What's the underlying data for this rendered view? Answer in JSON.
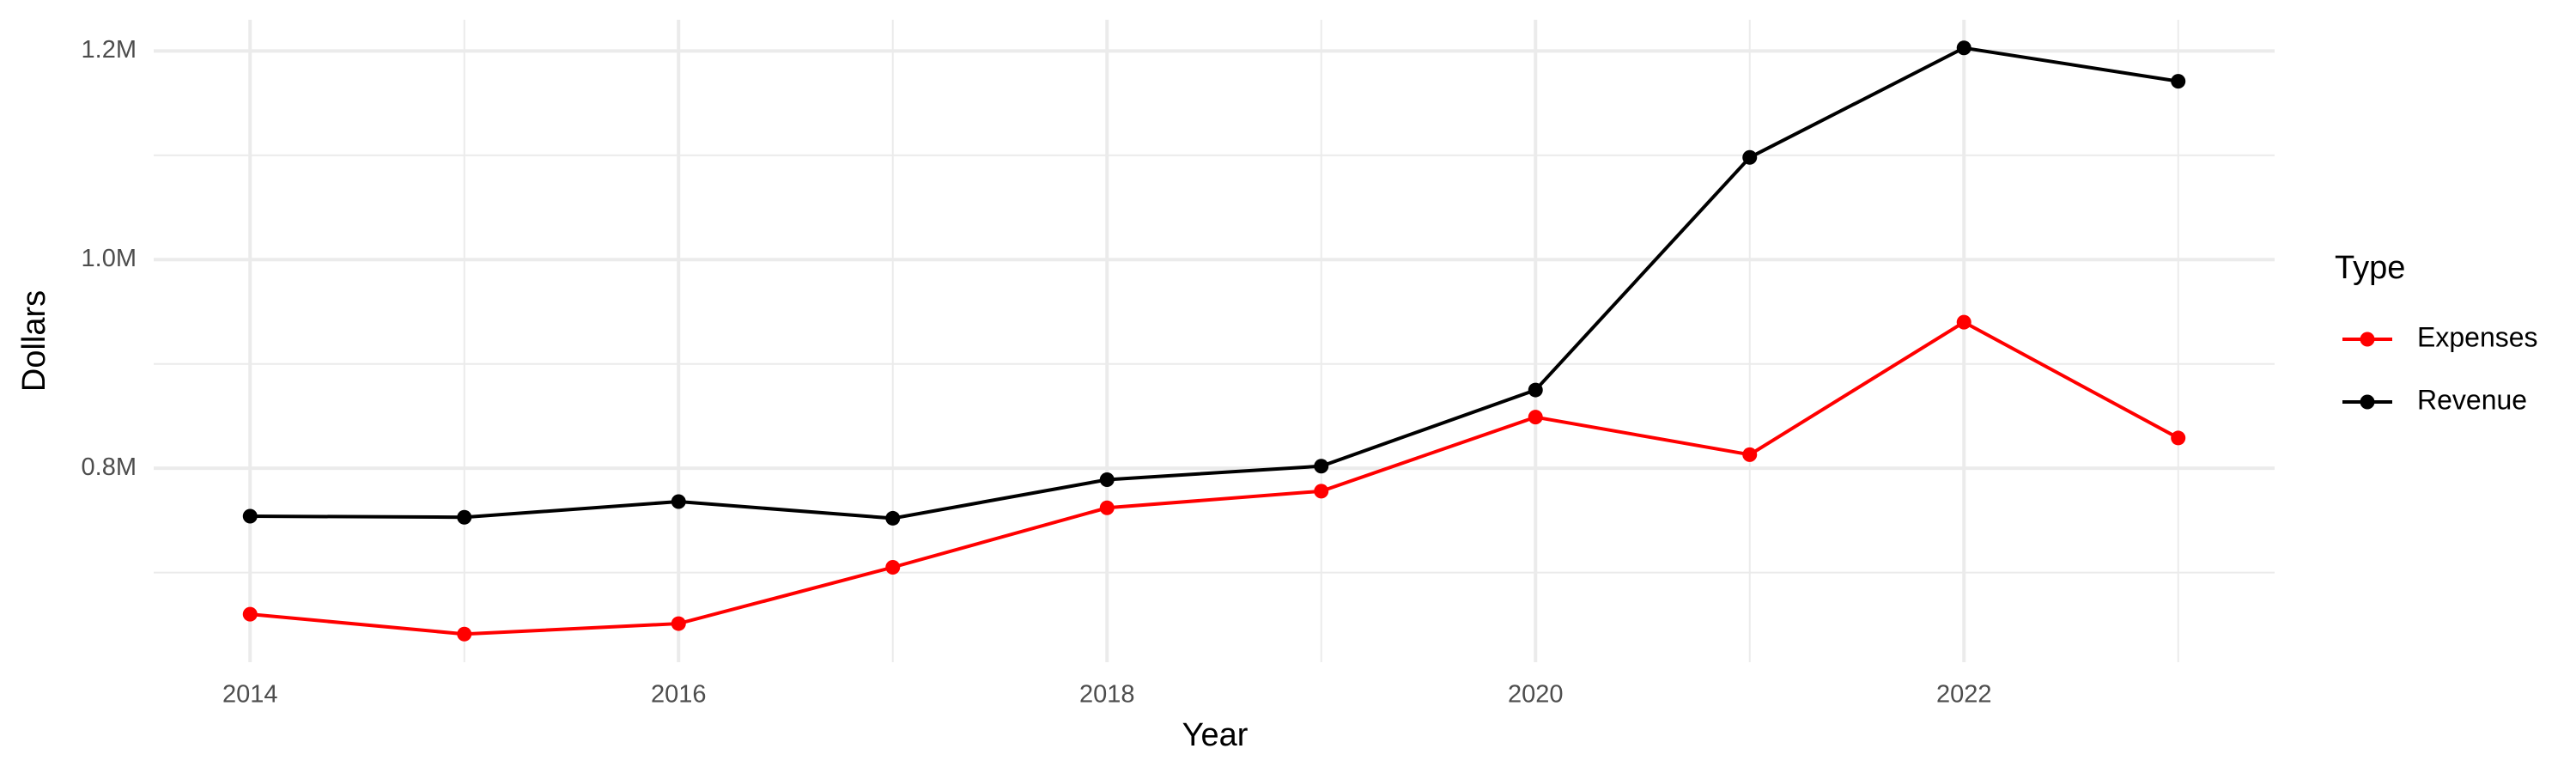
{
  "chart_data": {
    "type": "line",
    "x_label": "Year",
    "y_label": "Dollars",
    "x": [
      2014,
      2015,
      2016,
      2017,
      2018,
      2019,
      2020,
      2021,
      2022,
      2023
    ],
    "series": [
      {
        "name": "Expenses",
        "color": "#ff0000",
        "values": [
          660000,
          641000,
          651000,
          705000,
          762000,
          778000,
          849000,
          813000,
          940000,
          829000
        ]
      },
      {
        "name": "Revenue",
        "color": "#000000",
        "values": [
          754000,
          753000,
          768000,
          752000,
          789000,
          802000,
          875000,
          1098000,
          1203000,
          1171000
        ]
      }
    ],
    "xlim": [
      2013.55,
      2023.45
    ],
    "xticks": [
      2014,
      2016,
      2018,
      2020,
      2022
    ],
    "ylim": [
      614000,
      1230000
    ],
    "yticks": [
      {
        "value": 800000,
        "label": "0.8M"
      },
      {
        "value": 1000000,
        "label": "1.0M"
      },
      {
        "value": 1200000,
        "label": "1.2M"
      }
    ],
    "grid": true,
    "legend_title": "Type",
    "legend_position": "right"
  }
}
